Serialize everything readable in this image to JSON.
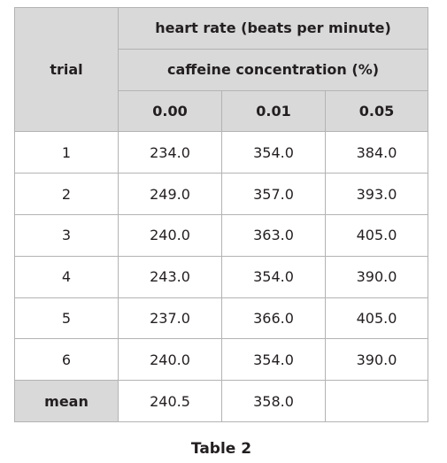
{
  "table": {
    "header_trial": "trial",
    "header_group": "heart rate (beats per minute)",
    "header_sub": "caffeine concentration (%)",
    "concentrations": [
      "0.00",
      "0.01",
      "0.05"
    ],
    "rows": [
      {
        "trial": "1",
        "values": [
          "234.0",
          "354.0",
          "384.0"
        ]
      },
      {
        "trial": "2",
        "values": [
          "249.0",
          "357.0",
          "393.0"
        ]
      },
      {
        "trial": "3",
        "values": [
          "240.0",
          "363.0",
          "405.0"
        ]
      },
      {
        "trial": "4",
        "values": [
          "243.0",
          "354.0",
          "390.0"
        ]
      },
      {
        "trial": "5",
        "values": [
          "237.0",
          "366.0",
          "405.0"
        ]
      },
      {
        "trial": "6",
        "values": [
          "240.0",
          "354.0",
          "390.0"
        ]
      }
    ],
    "mean_label": "mean",
    "mean_values": [
      "240.5",
      "358.0",
      ""
    ]
  },
  "caption": "Table 2"
}
